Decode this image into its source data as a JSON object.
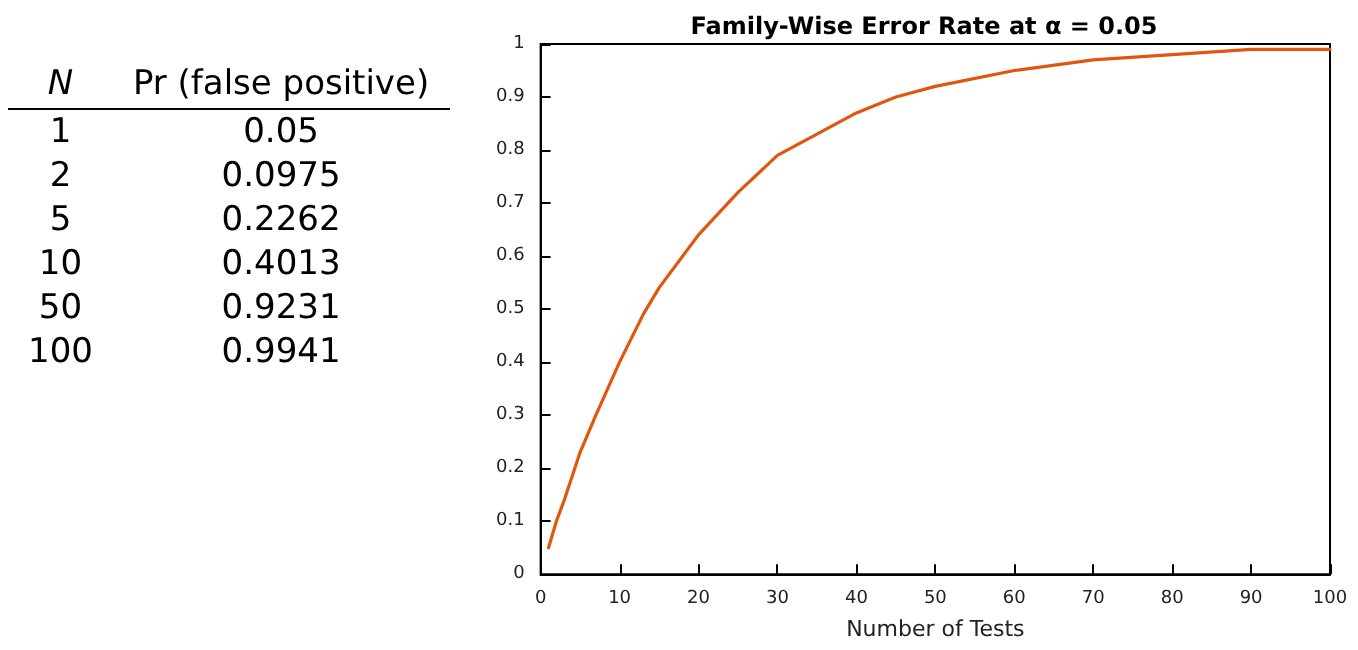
{
  "chart_data": [
    {
      "type": "other",
      "xlabel": "N",
      "ylabel": "Pr (false positive)",
      "categories": [
        "1",
        "2",
        "5",
        "10",
        "50",
        "100"
      ],
      "values": [
        0.05,
        0.0975,
        0.2262,
        0.4013,
        0.9231,
        0.9941
      ],
      "data_labels": true
    },
    {
      "type": "line",
      "title": "Family-Wise Error Rate at α = 0.05",
      "xlabel": "Number of Tests",
      "x": [
        1,
        2,
        3,
        5,
        7,
        10,
        13,
        15,
        20,
        25,
        30,
        35,
        40,
        45,
        50,
        60,
        70,
        80,
        90,
        100
      ],
      "series": [
        {
          "color": "#e0560f",
          "values": [
            0.05,
            0.1,
            0.14,
            0.23,
            0.3,
            0.4,
            0.49,
            0.54,
            0.64,
            0.72,
            0.79,
            0.83,
            0.87,
            0.9,
            0.92,
            0.95,
            0.97,
            0.98,
            0.99,
            0.99
          ]
        }
      ],
      "xlim": [
        0,
        100
      ],
      "xticks": [
        0,
        10,
        20,
        30,
        40,
        50,
        60,
        70,
        80,
        90,
        100
      ],
      "ylim": [
        0,
        1
      ],
      "yticks": [
        0,
        0.1,
        0.2,
        0.3,
        0.4,
        0.5,
        0.6,
        0.7,
        0.8,
        0.9,
        1
      ],
      "grid": false,
      "marker": "none",
      "line_style": "solid"
    }
  ]
}
